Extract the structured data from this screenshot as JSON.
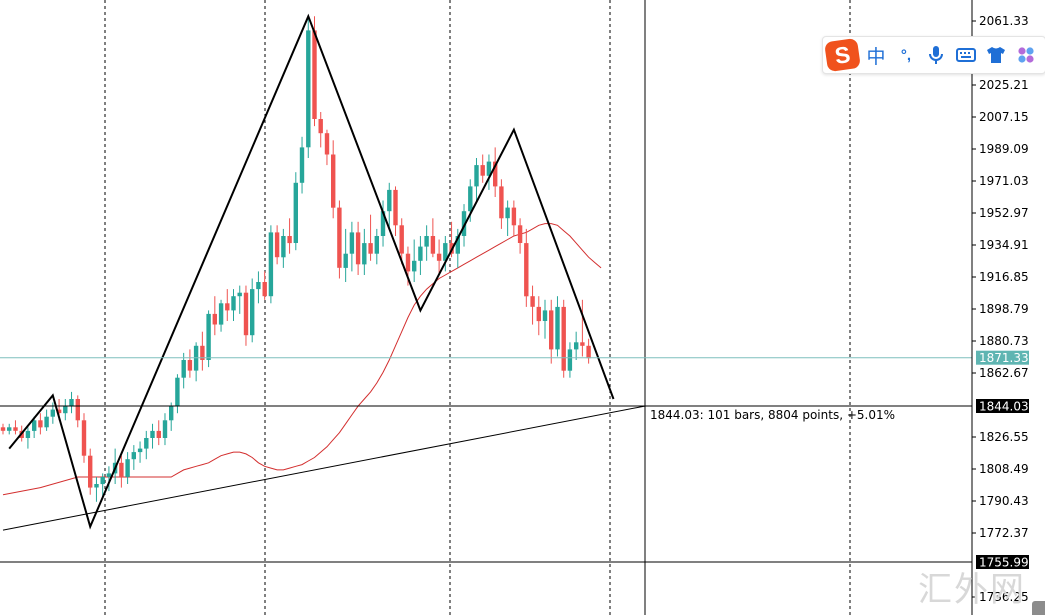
{
  "chart_data": {
    "type": "candlestick",
    "y_ticks": [
      "2061.33",
      "2025.21",
      "2007.15",
      "1989.09",
      "1971.03",
      "1952.97",
      "1934.91",
      "1916.85",
      "1898.79",
      "1880.73",
      "1862.67",
      "1826.55",
      "1808.49",
      "1790.43",
      "1772.37",
      "1736.25"
    ],
    "ylim": [
      1730,
      2070
    ],
    "tagged_levels": [
      {
        "id": "bid",
        "value": 1871.33,
        "label": "1871.33",
        "bg": "#5fb5b2",
        "fg": "#ffffff",
        "line": "#7fbfbe"
      },
      {
        "id": "ruler",
        "value": 1844.03,
        "label": "1844.03",
        "bg": "#000000",
        "fg": "#ffffff",
        "line": "#000000"
      },
      {
        "id": "low",
        "value": 1755.99,
        "label": "1755.99",
        "bg": "#000000",
        "fg": "#ffffff",
        "line": "#000000"
      }
    ],
    "ruler_text": "1844.03: 101 bars, 8804 points, +5.01%",
    "bull_color": "#26a69a",
    "bear_color": "#ef5350",
    "ma_color": "#d32f2f",
    "candles": [
      [
        1832,
        1834,
        1828,
        1830
      ],
      [
        1830,
        1834,
        1828,
        1832
      ],
      [
        1832,
        1836,
        1828,
        1830
      ],
      [
        1830,
        1833,
        1824,
        1826
      ],
      [
        1826,
        1832,
        1820,
        1830
      ],
      [
        1830,
        1838,
        1826,
        1836
      ],
      [
        1836,
        1840,
        1828,
        1832
      ],
      [
        1832,
        1842,
        1830,
        1838
      ],
      [
        1838,
        1846,
        1834,
        1842
      ],
      [
        1842,
        1848,
        1836,
        1840
      ],
      [
        1840,
        1848,
        1836,
        1844
      ],
      [
        1844,
        1852,
        1840,
        1848
      ],
      [
        1848,
        1850,
        1832,
        1836
      ],
      [
        1836,
        1840,
        1812,
        1816
      ],
      [
        1816,
        1820,
        1794,
        1798
      ],
      [
        1798,
        1804,
        1790,
        1800
      ],
      [
        1800,
        1806,
        1792,
        1804
      ],
      [
        1804,
        1810,
        1796,
        1806
      ],
      [
        1806,
        1820,
        1800,
        1812
      ],
      [
        1812,
        1816,
        1798,
        1804
      ],
      [
        1804,
        1818,
        1800,
        1814
      ],
      [
        1814,
        1822,
        1808,
        1818
      ],
      [
        1818,
        1824,
        1812,
        1820
      ],
      [
        1820,
        1830,
        1814,
        1826
      ],
      [
        1826,
        1834,
        1820,
        1830
      ],
      [
        1830,
        1836,
        1822,
        1826
      ],
      [
        1826,
        1840,
        1822,
        1836
      ],
      [
        1836,
        1846,
        1830,
        1844
      ],
      [
        1844,
        1862,
        1840,
        1860
      ],
      [
        1860,
        1874,
        1854,
        1870
      ],
      [
        1870,
        1876,
        1860,
        1864
      ],
      [
        1864,
        1880,
        1858,
        1878
      ],
      [
        1878,
        1886,
        1864,
        1870
      ],
      [
        1870,
        1898,
        1866,
        1896
      ],
      [
        1896,
        1906,
        1884,
        1890
      ],
      [
        1890,
        1904,
        1886,
        1902
      ],
      [
        1902,
        1910,
        1892,
        1898
      ],
      [
        1898,
        1910,
        1892,
        1906
      ],
      [
        1906,
        1912,
        1896,
        1908
      ],
      [
        1908,
        1912,
        1878,
        1884
      ],
      [
        1884,
        1916,
        1880,
        1910
      ],
      [
        1910,
        1920,
        1902,
        1914
      ],
      [
        1914,
        1920,
        1904,
        1906
      ],
      [
        1906,
        1946,
        1902,
        1942
      ],
      [
        1942,
        1946,
        1924,
        1928
      ],
      [
        1928,
        1944,
        1922,
        1940
      ],
      [
        1940,
        1950,
        1930,
        1936
      ],
      [
        1936,
        1976,
        1932,
        1970
      ],
      [
        1970,
        1996,
        1964,
        1990
      ],
      [
        1990,
        2064,
        1984,
        2056
      ],
      [
        2056,
        2064,
        2002,
        2006
      ],
      [
        2006,
        2010,
        1990,
        1998
      ],
      [
        1998,
        2000,
        1980,
        1986
      ],
      [
        1986,
        1994,
        1950,
        1956
      ],
      [
        1956,
        1960,
        1916,
        1922
      ],
      [
        1922,
        1944,
        1914,
        1930
      ],
      [
        1930,
        1948,
        1920,
        1942
      ],
      [
        1942,
        1948,
        1918,
        1924
      ],
      [
        1924,
        1944,
        1918,
        1936
      ],
      [
        1936,
        1952,
        1926,
        1930
      ],
      [
        1930,
        1944,
        1924,
        1940
      ],
      [
        1940,
        1960,
        1934,
        1954
      ],
      [
        1954,
        1970,
        1944,
        1966
      ],
      [
        1966,
        1968,
        1940,
        1946
      ],
      [
        1946,
        1950,
        1924,
        1930
      ],
      [
        1930,
        1934,
        1912,
        1920
      ],
      [
        1920,
        1938,
        1914,
        1926
      ],
      [
        1926,
        1940,
        1918,
        1934
      ],
      [
        1934,
        1946,
        1926,
        1940
      ],
      [
        1940,
        1950,
        1928,
        1930
      ],
      [
        1930,
        1938,
        1918,
        1926
      ],
      [
        1926,
        1940,
        1920,
        1936
      ],
      [
        1936,
        1948,
        1928,
        1930
      ],
      [
        1930,
        1944,
        1922,
        1940
      ],
      [
        1940,
        1958,
        1934,
        1954
      ],
      [
        1954,
        1972,
        1948,
        1968
      ],
      [
        1968,
        1984,
        1960,
        1980
      ],
      [
        1980,
        1986,
        1970,
        1974
      ],
      [
        1974,
        1986,
        1966,
        1982
      ],
      [
        1982,
        1990,
        1962,
        1968
      ],
      [
        1968,
        1972,
        1944,
        1950
      ],
      [
        1950,
        1960,
        1940,
        1956
      ],
      [
        1956,
        1960,
        1940,
        1946
      ],
      [
        1946,
        1950,
        1930,
        1936
      ],
      [
        1936,
        1944,
        1900,
        1906
      ],
      [
        1906,
        1912,
        1890,
        1900
      ],
      [
        1900,
        1906,
        1884,
        1892
      ],
      [
        1892,
        1904,
        1882,
        1898
      ],
      [
        1898,
        1904,
        1868,
        1876
      ],
      [
        1876,
        1906,
        1872,
        1900
      ],
      [
        1900,
        1904,
        1860,
        1864
      ],
      [
        1864,
        1880,
        1860,
        1876
      ],
      [
        1876,
        1886,
        1870,
        1880
      ],
      [
        1880,
        1904,
        1872,
        1878
      ],
      [
        1878,
        1882,
        1868,
        1871
      ]
    ],
    "ma": [
      1804,
      1806,
      1808,
      1809,
      1810,
      1811,
      1812,
      1814,
      1816,
      1817,
      1818,
      1818,
      1817,
      1815,
      1812,
      1810,
      1809,
      1808,
      1808,
      1809,
      1810,
      1811,
      1813,
      1815,
      1818,
      1821,
      1825,
      1829,
      1834,
      1839,
      1844,
      1848,
      1852,
      1857,
      1863,
      1870,
      1878,
      1886,
      1894,
      1901,
      1906,
      1910,
      1913,
      1916,
      1918,
      1920,
      1922,
      1924,
      1926,
      1928,
      1930,
      1932,
      1934,
      1936,
      1938,
      1940,
      1941,
      1942,
      1944,
      1946,
      1947,
      1947,
      1946,
      1943,
      1940,
      1936,
      1932,
      1928,
      1925,
      1922
    ],
    "zigzag": [
      [
        1,
        1820
      ],
      [
        8,
        1850
      ],
      [
        14,
        1776
      ],
      [
        49,
        2064
      ],
      [
        67,
        1898
      ],
      [
        82,
        2000
      ],
      [
        98,
        1848
      ]
    ],
    "ruler_line": [
      [
        0,
        1774
      ],
      [
        103,
        1844
      ]
    ],
    "v_lines": [
      105,
      265,
      450,
      610,
      850
    ],
    "crosshair_x": 645
  },
  "ime": {
    "chinese_label": "中",
    "punct_label": "°,",
    "mic_icon": "mic-icon",
    "keyboard_icon": "keyboard-icon",
    "skin_icon": "tshirt-icon",
    "apps_icon": "grid-icon",
    "logo_letter": "S",
    "accent": "#1f6fd6",
    "logo_color": "#f0521d"
  },
  "watermark": "汇外网"
}
